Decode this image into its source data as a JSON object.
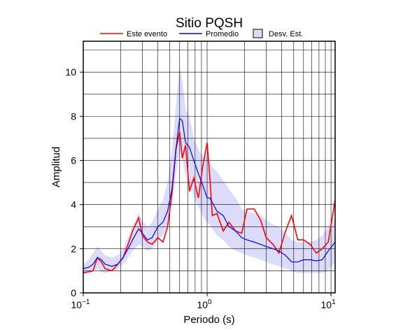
{
  "chart_data": {
    "type": "line",
    "title": "Sitio PQSH",
    "x_label": "Periodo (s)",
    "y_label": "Amplitud",
    "x_scale": "log",
    "xlim": [
      0.1,
      10.8
    ],
    "ylim": [
      0,
      11.4
    ],
    "xticks": [
      {
        "value": 0.1,
        "label": "10",
        "exponent": "−1"
      },
      {
        "value": 1,
        "label": "10",
        "exponent": "0"
      },
      {
        "value": 10,
        "label": "10",
        "exponent": "1"
      }
    ],
    "xminor": [
      0.2,
      0.3,
      0.4,
      0.5,
      0.6,
      0.7,
      0.8,
      0.9,
      2,
      3,
      4,
      5,
      6,
      7,
      8,
      9
    ],
    "yticks": [
      0,
      2,
      4,
      6,
      8,
      10
    ],
    "yminor": [
      1,
      3,
      5,
      7,
      9,
      11
    ],
    "grid": true,
    "x": [
      0.1,
      0.11,
      0.12,
      0.13,
      0.14,
      0.15,
      0.17,
      0.19,
      0.21,
      0.23,
      0.25,
      0.28,
      0.3,
      0.33,
      0.36,
      0.4,
      0.44,
      0.48,
      0.52,
      0.56,
      0.6,
      0.63,
      0.67,
      0.72,
      0.78,
      0.85,
      0.92,
      1.0,
      1.05,
      1.1,
      1.2,
      1.35,
      1.5,
      1.7,
      1.9,
      2.1,
      2.4,
      2.7,
      3.0,
      3.4,
      3.8,
      4.3,
      4.8,
      5.4,
      6.0,
      6.8,
      7.6,
      8.5,
      9.5,
      10.8
    ],
    "band": {
      "name": "Desv. Est.",
      "color": "#dcdcfa",
      "lower": [
        0.9,
        0.95,
        1.0,
        1.1,
        0.95,
        0.9,
        1.0,
        1.1,
        1.3,
        1.6,
        1.9,
        2.2,
        2.1,
        1.9,
        2.0,
        2.4,
        2.6,
        3.1,
        4.0,
        5.4,
        6.4,
        6.1,
        5.3,
        5.0,
        4.4,
        3.9,
        3.5,
        3.2,
        3.1,
        2.9,
        2.6,
        2.4,
        2.1,
        1.9,
        1.8,
        1.7,
        1.6,
        1.5,
        1.4,
        1.3,
        1.2,
        1.1,
        1.0,
        0.9,
        0.9,
        0.9,
        0.9,
        0.9,
        1.0,
        1.4
      ],
      "upper": [
        1.3,
        1.5,
        1.8,
        2.1,
        1.9,
        1.7,
        1.6,
        1.7,
        2.0,
        2.5,
        3.0,
        3.6,
        3.3,
        3.0,
        3.2,
        3.8,
        4.2,
        5.0,
        6.5,
        8.5,
        10.3,
        9.6,
        8.3,
        8.0,
        7.0,
        6.5,
        6.2,
        6.2,
        6.0,
        5.7,
        5.5,
        5.1,
        4.7,
        4.3,
        3.8,
        3.7,
        3.6,
        3.5,
        3.3,
        3.1,
        3.0,
        2.7,
        2.4,
        2.3,
        2.3,
        2.3,
        2.4,
        2.6,
        3.0,
        3.4
      ]
    },
    "series": [
      {
        "name": "Este evento",
        "color": "#ff0000",
        "values": [
          0.9,
          0.95,
          1.0,
          1.6,
          1.4,
          1.1,
          1.0,
          1.3,
          1.6,
          2.2,
          2.8,
          3.4,
          2.6,
          2.3,
          2.2,
          2.5,
          2.3,
          3.0,
          4.5,
          6.5,
          7.3,
          6.1,
          6.7,
          4.6,
          5.2,
          4.3,
          5.7,
          6.8,
          5.3,
          3.5,
          3.6,
          2.8,
          3.2,
          2.8,
          2.7,
          3.8,
          3.8,
          3.3,
          2.5,
          2.2,
          1.8,
          2.8,
          3.5,
          2.4,
          2.4,
          2.2,
          1.8,
          2.0,
          2.3,
          4.2
        ]
      },
      {
        "name": "Promedio",
        "color": "#0000ff",
        "values": [
          1.1,
          1.15,
          1.3,
          1.6,
          1.5,
          1.3,
          1.2,
          1.3,
          1.6,
          2.0,
          2.4,
          2.9,
          2.7,
          2.4,
          2.5,
          3.0,
          3.2,
          3.7,
          4.7,
          6.5,
          7.9,
          7.8,
          6.8,
          6.6,
          6.0,
          5.4,
          4.9,
          4.3,
          4.3,
          4.1,
          3.7,
          3.5,
          3.0,
          2.8,
          2.5,
          2.4,
          2.3,
          2.2,
          2.1,
          2.0,
          1.9,
          1.7,
          1.4,
          1.4,
          1.5,
          1.5,
          1.45,
          1.5,
          1.9,
          2.3
        ]
      }
    ]
  }
}
